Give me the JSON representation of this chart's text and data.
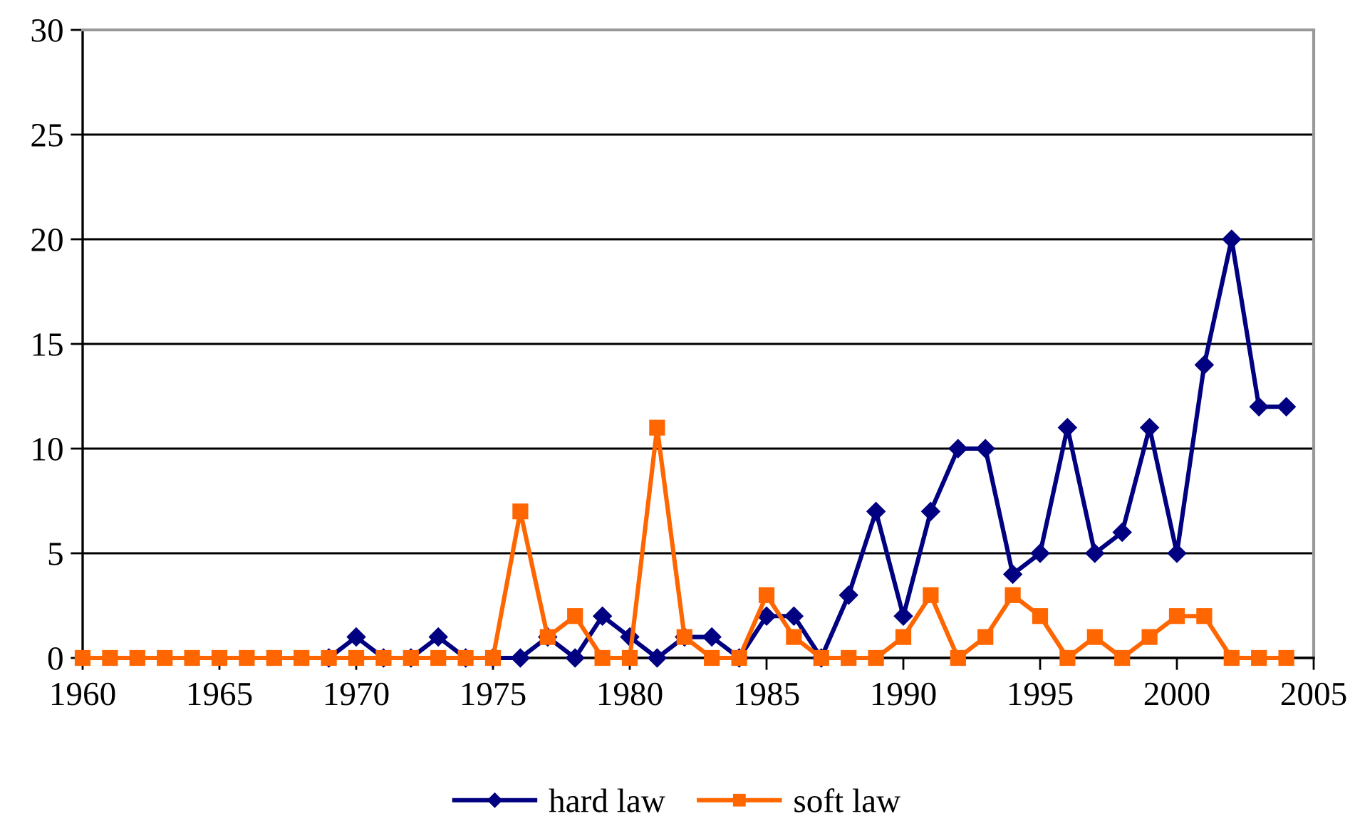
{
  "chart_data": {
    "type": "line",
    "x": [
      1960,
      1961,
      1962,
      1963,
      1964,
      1965,
      1966,
      1967,
      1968,
      1969,
      1970,
      1971,
      1972,
      1973,
      1974,
      1975,
      1976,
      1977,
      1978,
      1979,
      1980,
      1981,
      1982,
      1983,
      1984,
      1985,
      1986,
      1987,
      1988,
      1989,
      1990,
      1991,
      1992,
      1993,
      1994,
      1995,
      1996,
      1997,
      1998,
      1999,
      2000,
      2001,
      2002,
      2003,
      2004
    ],
    "series": [
      {
        "name": "hard law",
        "color": "#000080",
        "marker": "diamond",
        "values": [
          null,
          null,
          null,
          null,
          null,
          null,
          null,
          null,
          null,
          0,
          1,
          0,
          0,
          1,
          0,
          0,
          0,
          1,
          0,
          2,
          1,
          0,
          1,
          1,
          0,
          2,
          2,
          0,
          3,
          7,
          2,
          7,
          10,
          10,
          4,
          5,
          11,
          5,
          6,
          11,
          5,
          14,
          20,
          12,
          12
        ]
      },
      {
        "name": "soft law",
        "color": "#ff6600",
        "marker": "square",
        "values": [
          0,
          0,
          0,
          0,
          0,
          0,
          0,
          0,
          0,
          0,
          0,
          0,
          0,
          0,
          0,
          0,
          7,
          1,
          2,
          0,
          0,
          11,
          1,
          0,
          0,
          3,
          1,
          0,
          0,
          0,
          1,
          3,
          0,
          1,
          3,
          2,
          0,
          1,
          0,
          1,
          2,
          2,
          0,
          0,
          0
        ]
      }
    ],
    "xlim": [
      1960,
      2005
    ],
    "xticks": [
      1960,
      1965,
      1970,
      1975,
      1980,
      1985,
      1990,
      1995,
      2000,
      2005
    ],
    "ylim": [
      0,
      30
    ],
    "yticks": [
      0,
      5,
      10,
      15,
      20,
      25,
      30
    ],
    "grid": "y",
    "legend": "bottom",
    "line_style": "solid"
  }
}
